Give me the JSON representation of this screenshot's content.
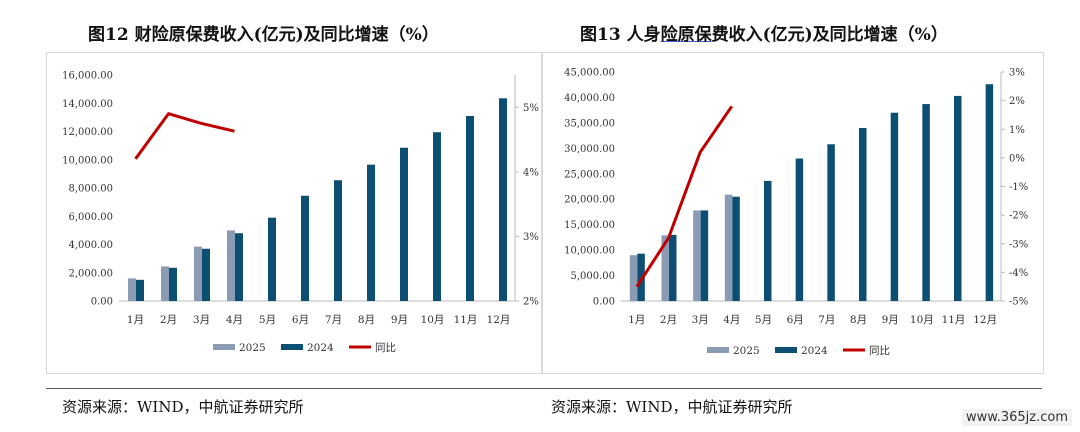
{
  "figures": [
    {
      "title_prefix": "图12",
      "title": "财险原保费收入(亿元)及同比增速（%）",
      "source": "资源来源：WIND，中航证券研究所"
    },
    {
      "title_prefix": "图13",
      "title_a": "人身",
      "title_u": "险原保",
      "title_b": "费收入(亿元)及同比增速（%）",
      "source": "资源来源：WIND，中航证券研究所"
    }
  ],
  "watermark": "www.365jz.com",
  "chart_data": [
    {
      "type": "bar",
      "categories": [
        "1月",
        "2月",
        "3月",
        "4月",
        "5月",
        "6月",
        "7月",
        "8月",
        "9月",
        "10月",
        "11月",
        "12月"
      ],
      "series": [
        {
          "name": "2025",
          "kind": "bar",
          "color": "#8a9bb3",
          "values": [
            1600,
            2450,
            3850,
            5000,
            null,
            null,
            null,
            null,
            null,
            null,
            null,
            null
          ]
        },
        {
          "name": "2024",
          "kind": "bar",
          "color": "#0c4f73",
          "values": [
            1500,
            2350,
            3700,
            4800,
            5900,
            7450,
            8550,
            9650,
            10850,
            11950,
            13100,
            14350
          ]
        },
        {
          "name": "同比",
          "kind": "line",
          "axis": "right",
          "color": "#c00000",
          "values": [
            4.2,
            4.9,
            4.75,
            4.63,
            null,
            null,
            null,
            null,
            null,
            null,
            null,
            null
          ]
        }
      ],
      "ylim": [
        0,
        16000
      ],
      "yticks": [
        "0.00",
        "2,000.00",
        "4,000.00",
        "6,000.00",
        "8,000.00",
        "10,000.00",
        "12,000.00",
        "14,000.00",
        "16,000.00"
      ],
      "y2lim": [
        2,
        5.5
      ],
      "y2ticks": [
        "2%",
        "3%",
        "4%",
        "5%"
      ],
      "y2tickvals": [
        2,
        3,
        4,
        5
      ],
      "legend_position": "bottom"
    },
    {
      "type": "bar",
      "categories": [
        "1月",
        "2月",
        "3月",
        "4月",
        "5月",
        "6月",
        "7月",
        "8月",
        "9月",
        "10月",
        "11月",
        "12月"
      ],
      "series": [
        {
          "name": "2025",
          "kind": "bar",
          "color": "#8a9bb3",
          "values": [
            9000,
            12900,
            17800,
            20900,
            null,
            null,
            null,
            null,
            null,
            null,
            null,
            null
          ]
        },
        {
          "name": "2024",
          "kind": "bar",
          "color": "#0c4f73",
          "values": [
            9300,
            13000,
            17800,
            20500,
            23600,
            28000,
            30800,
            34000,
            37000,
            38700,
            40300,
            42600
          ]
        },
        {
          "name": "同比",
          "kind": "line",
          "axis": "right",
          "color": "#c00000",
          "values": [
            -4.5,
            -2.8,
            0.2,
            1.8,
            null,
            null,
            null,
            null,
            null,
            null,
            null,
            null
          ]
        }
      ],
      "ylim": [
        0,
        45000
      ],
      "yticks": [
        "0.00",
        "5,000.00",
        "10,000.00",
        "15,000.00",
        "20,000.00",
        "25,000.00",
        "30,000.00",
        "35,000.00",
        "40,000.00",
        "45,000.00"
      ],
      "y2lim": [
        -5,
        3
      ],
      "y2ticks": [
        "-5%",
        "-4%",
        "-3%",
        "-2%",
        "-1%",
        "0%",
        "1%",
        "2%",
        "3%"
      ],
      "y2tickvals": [
        -5,
        -4,
        -3,
        -2,
        -1,
        0,
        1,
        2,
        3
      ],
      "legend_position": "bottom"
    }
  ]
}
